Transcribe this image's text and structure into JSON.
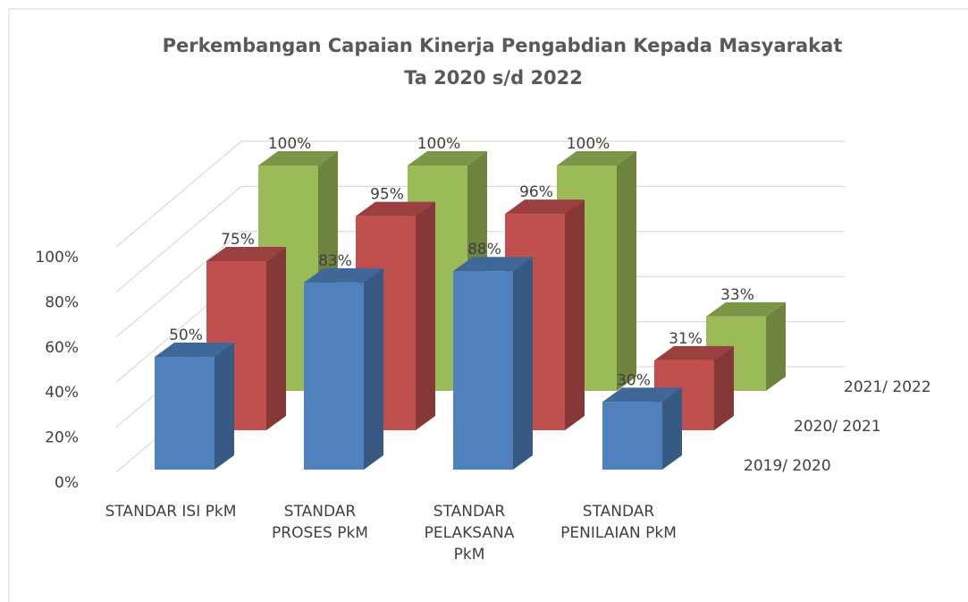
{
  "chart_data": {
    "type": "bar3d",
    "title": "Perkembangan Capaian Kinerja Pengabdian Kepada Masyarakat",
    "subtitle": "Ta 2020 s/d 2022",
    "categories": [
      "STANDAR ISI PkM",
      "STANDAR PROSES PkM",
      "STANDAR PELAKSANA PkM",
      "STANDAR PENILAIAN PkM"
    ],
    "series": [
      {
        "name": "2019/ 2020",
        "color": "#4f81bd",
        "values": [
          50,
          83,
          88,
          30
        ],
        "value_labels": [
          "50%",
          "83%",
          "88%",
          "30%"
        ]
      },
      {
        "name": "2020/ 2021",
        "color": "#c0504d",
        "values": [
          75,
          95,
          96,
          31
        ],
        "value_labels": [
          "75%",
          "95%",
          "96%",
          "31%"
        ]
      },
      {
        "name": "2021/ 2022",
        "color": "#9bbb59",
        "values": [
          100,
          100,
          100,
          33
        ],
        "value_labels": [
          "100%",
          "100%",
          "100%",
          "33%"
        ]
      }
    ],
    "ylim": [
      0,
      100
    ],
    "yticks": [
      {
        "value": 0,
        "label": "0%"
      },
      {
        "value": 20,
        "label": "20%"
      },
      {
        "value": 40,
        "label": "40%"
      },
      {
        "value": 60,
        "label": "60%"
      },
      {
        "value": 80,
        "label": "80%"
      },
      {
        "value": 100,
        "label": "100%"
      }
    ],
    "grid": true
  }
}
